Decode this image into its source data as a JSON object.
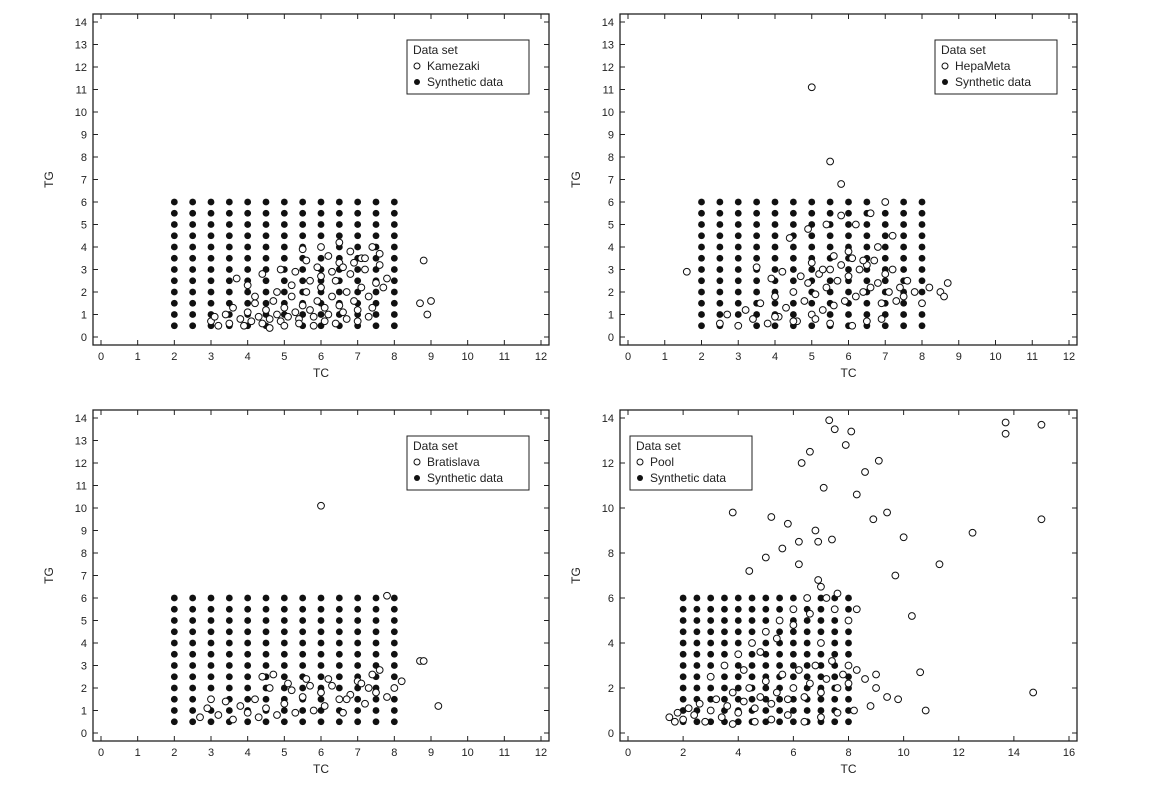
{
  "figure": {
    "panel_count": 4,
    "colors": {
      "axis": "#222222",
      "hollow_marker": "#ffffff",
      "filled_marker": "#111111"
    }
  },
  "chart_data": [
    {
      "type": "scatter",
      "xlabel": "TC",
      "ylabel": "TG",
      "xlim": [
        0,
        12
      ],
      "ylim": [
        0,
        14
      ],
      "xticks": [
        0,
        1,
        2,
        3,
        4,
        5,
        6,
        7,
        8,
        9,
        10,
        11,
        12
      ],
      "yticks": [
        0,
        1,
        2,
        3,
        4,
        5,
        6,
        7,
        8,
        9,
        10,
        11,
        12,
        13,
        14
      ],
      "legend_title": "Data set",
      "legend_position": "top-right",
      "series": [
        {
          "name": "Kamezaki",
          "marker": "hollow-circle",
          "x": [
            3.0,
            3.1,
            3.2,
            3.4,
            3.5,
            3.6,
            3.8,
            3.9,
            4.0,
            4.1,
            4.2,
            4.3,
            4.4,
            4.5,
            4.6,
            4.7,
            4.8,
            4.9,
            5.0,
            5.1,
            5.2,
            5.3,
            5.4,
            5.5,
            5.6,
            5.7,
            5.8,
            5.9,
            6.0,
            6.1,
            6.2,
            6.3,
            6.4,
            6.5,
            6.6,
            6.7,
            6.8,
            6.9,
            7.0,
            7.1,
            7.2,
            7.3,
            7.4,
            7.5,
            7.6,
            7.8,
            3.7,
            4.0,
            4.4,
            4.9,
            5.3,
            5.6,
            5.9,
            6.2,
            6.5,
            6.8,
            7.1,
            7.4,
            7.7,
            4.6,
            5.0,
            5.4,
            5.8,
            6.1,
            6.4,
            6.7,
            7.0,
            7.3,
            4.2,
            4.8,
            5.2,
            5.7,
            6.0,
            6.3,
            6.6,
            6.9,
            7.2,
            7.6,
            5.5,
            6.0,
            6.5,
            8.7,
            8.8,
            8.9,
            9.0
          ],
          "y": [
            0.7,
            0.9,
            0.5,
            1.0,
            0.6,
            1.3,
            0.8,
            0.5,
            1.1,
            0.7,
            1.5,
            0.9,
            0.6,
            1.2,
            0.8,
            1.6,
            1.0,
            0.7,
            1.3,
            0.9,
            1.8,
            1.1,
            0.8,
            1.4,
            2.0,
            1.2,
            0.9,
            1.6,
            2.2,
            1.3,
            1.0,
            1.8,
            2.5,
            1.4,
            1.1,
            2.0,
            2.8,
            1.6,
            1.2,
            2.2,
            3.0,
            1.8,
            1.3,
            2.4,
            3.2,
            2.6,
            2.6,
            2.3,
            2.8,
            3.0,
            2.9,
            3.4,
            3.1,
            3.6,
            3.3,
            3.8,
            3.5,
            4.0,
            2.2,
            0.4,
            0.5,
            0.6,
            0.5,
            0.7,
            0.6,
            0.8,
            0.7,
            0.9,
            1.8,
            2.0,
            2.3,
            2.5,
            2.7,
            2.9,
            3.1,
            3.3,
            3.5,
            3.7,
            3.9,
            4.0,
            4.2,
            1.5,
            3.4,
            1.0,
            1.6
          ]
        },
        {
          "name": "Synthetic data",
          "marker": "filled-circle",
          "x_grid": [
            2.0,
            8.0,
            0.5
          ],
          "y_grid": [
            0.5,
            6.0,
            0.5
          ]
        }
      ]
    },
    {
      "type": "scatter",
      "xlabel": "TC",
      "ylabel": "TG",
      "xlim": [
        0,
        12
      ],
      "ylim": [
        0,
        14
      ],
      "xticks": [
        0,
        1,
        2,
        3,
        4,
        5,
        6,
        7,
        8,
        9,
        10,
        11,
        12
      ],
      "yticks": [
        0,
        1,
        2,
        3,
        4,
        5,
        6,
        7,
        8,
        9,
        10,
        11,
        12,
        13,
        14
      ],
      "legend_title": "Data set",
      "legend_position": "top-right",
      "series": [
        {
          "name": "HepaMeta",
          "marker": "hollow-circle",
          "x": [
            1.6,
            2.5,
            2.7,
            3.0,
            3.2,
            3.4,
            3.6,
            3.8,
            4.0,
            4.1,
            4.3,
            4.5,
            4.6,
            4.8,
            4.9,
            5.0,
            5.1,
            5.2,
            5.3,
            5.4,
            5.5,
            5.6,
            5.7,
            5.8,
            5.9,
            6.0,
            6.1,
            6.2,
            6.3,
            6.4,
            6.5,
            6.6,
            6.7,
            6.8,
            6.9,
            7.0,
            7.1,
            7.2,
            7.3,
            7.4,
            7.5,
            7.6,
            7.8,
            8.0,
            8.2,
            3.5,
            3.9,
            4.2,
            4.7,
            5.0,
            5.3,
            5.6,
            6.0,
            6.4,
            6.8,
            7.2,
            4.4,
            4.9,
            5.4,
            5.8,
            6.2,
            6.6,
            7.0,
            4.0,
            4.5,
            5.1,
            5.5,
            6.1,
            6.5,
            6.9,
            5.0,
            5.5,
            5.8,
            8.5,
            8.6,
            8.7
          ],
          "y": [
            2.9,
            0.6,
            1.0,
            0.5,
            1.2,
            0.8,
            1.5,
            0.6,
            1.8,
            0.9,
            1.3,
            2.0,
            0.7,
            1.6,
            2.4,
            1.0,
            1.9,
            2.8,
            1.2,
            2.2,
            3.0,
            1.4,
            2.5,
            3.2,
            1.6,
            2.7,
            3.5,
            1.8,
            3.0,
            2.0,
            3.2,
            2.2,
            3.4,
            2.4,
            1.5,
            2.8,
            2.0,
            3.0,
            1.6,
            2.2,
            1.8,
            2.5,
            2.0,
            1.5,
            2.2,
            3.1,
            2.6,
            2.9,
            2.7,
            3.3,
            3.0,
            3.6,
            3.8,
            3.4,
            4.0,
            4.5,
            4.4,
            4.8,
            5.0,
            5.4,
            5.0,
            5.5,
            6.0,
            0.9,
            0.7,
            0.8,
            0.6,
            0.5,
            0.7,
            0.8,
            11.1,
            7.8,
            6.8,
            2.0,
            1.8,
            2.4
          ]
        },
        {
          "name": "Synthetic data",
          "marker": "filled-circle",
          "x_grid": [
            2.0,
            8.0,
            0.5
          ],
          "y_grid": [
            0.5,
            6.0,
            0.5
          ]
        }
      ]
    },
    {
      "type": "scatter",
      "xlabel": "TC",
      "ylabel": "TG",
      "xlim": [
        0,
        12
      ],
      "ylim": [
        0,
        14
      ],
      "xticks": [
        0,
        1,
        2,
        3,
        4,
        5,
        6,
        7,
        8,
        9,
        10,
        11,
        12
      ],
      "yticks": [
        0,
        1,
        2,
        3,
        4,
        5,
        6,
        7,
        8,
        9,
        10,
        11,
        12,
        13,
        14
      ],
      "legend_title": "Data set",
      "legend_position": "top-right",
      "series": [
        {
          "name": "Bratislava",
          "marker": "hollow-circle",
          "x": [
            2.7,
            2.9,
            3.0,
            3.2,
            3.4,
            3.6,
            3.8,
            4.0,
            4.2,
            4.3,
            4.5,
            4.6,
            4.8,
            5.0,
            5.1,
            5.3,
            5.5,
            5.6,
            5.8,
            6.0,
            6.1,
            6.3,
            6.5,
            6.6,
            6.8,
            7.0,
            7.2,
            7.4,
            7.5,
            7.6,
            7.8,
            8.0,
            8.2,
            4.4,
            4.7,
            5.2,
            5.7,
            6.2,
            6.7,
            7.1,
            7.3,
            6.0,
            7.8,
            8.7,
            8.8,
            9.2
          ],
          "y": [
            0.7,
            1.1,
            1.5,
            0.8,
            1.4,
            0.6,
            1.2,
            0.9,
            1.5,
            0.7,
            1.1,
            2.0,
            0.8,
            1.3,
            2.2,
            0.9,
            1.6,
            2.4,
            1.0,
            1.8,
            1.2,
            2.1,
            1.5,
            0.9,
            1.7,
            2.3,
            1.3,
            2.6,
            1.8,
            2.8,
            1.6,
            2.0,
            2.3,
            2.5,
            2.6,
            1.9,
            2.1,
            2.4,
            1.5,
            2.2,
            2.0,
            10.1,
            6.1,
            3.2,
            3.2,
            1.2
          ]
        },
        {
          "name": "Synthetic data",
          "marker": "filled-circle",
          "x_grid": [
            2.0,
            8.0,
            0.5
          ],
          "y_grid": [
            0.5,
            6.0,
            0.5
          ]
        }
      ]
    },
    {
      "type": "scatter",
      "xlabel": "TC",
      "ylabel": "TG",
      "xlim": [
        0,
        16
      ],
      "ylim": [
        0,
        14
      ],
      "xticks": [
        0,
        2,
        4,
        6,
        8,
        10,
        12,
        14,
        16
      ],
      "yticks": [
        0,
        2,
        4,
        6,
        8,
        10,
        12,
        14
      ],
      "legend_title": "Data set",
      "legend_position": "top-left",
      "series": [
        {
          "name": "Pool",
          "marker": "hollow-circle",
          "x": [
            1.5,
            1.7,
            1.8,
            2.0,
            2.2,
            2.4,
            2.6,
            2.8,
            3.0,
            3.2,
            3.4,
            3.6,
            3.8,
            4.0,
            4.2,
            4.4,
            4.6,
            4.8,
            5.0,
            5.2,
            5.4,
            5.6,
            5.8,
            6.0,
            6.2,
            6.4,
            6.6,
            6.8,
            7.0,
            7.2,
            7.4,
            7.6,
            7.8,
            8.0,
            8.3,
            8.6,
            9.0,
            9.4,
            9.8,
            3.0,
            3.5,
            4.0,
            4.5,
            5.0,
            5.5,
            6.0,
            6.5,
            7.0,
            7.5,
            8.0,
            4.2,
            4.8,
            5.4,
            6.0,
            6.6,
            7.2,
            3.8,
            4.6,
            5.2,
            5.8,
            6.4,
            7.0,
            7.6,
            8.2,
            8.8,
            4.4,
            5.0,
            5.6,
            6.2,
            6.8,
            7.4,
            3.8,
            5.2,
            5.8,
            6.3,
            6.6,
            6.9,
            7.1,
            7.3,
            7.5,
            7.9,
            8.1,
            8.3,
            8.6,
            8.9,
            9.1,
            9.4,
            9.7,
            10.0,
            10.3,
            10.6,
            10.8,
            11.3,
            12.5,
            13.7,
            14.7,
            15.0,
            13.7,
            15.0,
            7.0,
            8.0,
            9.0,
            6.2,
            6.9,
            7.6,
            8.3
          ],
          "y": [
            0.7,
            0.5,
            0.9,
            0.6,
            1.1,
            0.8,
            1.3,
            0.5,
            1.0,
            1.5,
            0.7,
            1.2,
            1.8,
            0.9,
            1.4,
            2.0,
            1.1,
            1.6,
            2.3,
            1.3,
            1.8,
            2.6,
            1.5,
            2.0,
            2.8,
            1.6,
            2.2,
            3.0,
            1.8,
            2.4,
            3.2,
            2.0,
            2.6,
            2.2,
            2.8,
            2.4,
            2.0,
            1.6,
            1.5,
            2.5,
            3.0,
            3.5,
            4.0,
            4.5,
            5.0,
            5.5,
            6.0,
            6.5,
            5.5,
            5.0,
            2.8,
            3.6,
            4.2,
            4.8,
            5.3,
            6.0,
            0.4,
            0.5,
            0.6,
            0.8,
            0.5,
            0.7,
            0.9,
            1.0,
            1.2,
            7.2,
            7.8,
            8.2,
            8.5,
            9.0,
            8.6,
            9.8,
            9.6,
            9.3,
            12.0,
            12.5,
            8.5,
            10.9,
            13.9,
            13.5,
            12.8,
            13.4,
            10.6,
            11.6,
            9.5,
            12.1,
            9.8,
            7.0,
            8.7,
            5.2,
            2.7,
            1.0,
            7.5,
            8.9,
            13.8,
            1.8,
            9.5,
            13.3,
            13.7,
            4.0,
            3.0,
            2.6,
            7.5,
            6.8,
            6.2,
            5.5
          ]
        },
        {
          "name": "Synthetic data",
          "marker": "filled-circle",
          "x_grid": [
            2.0,
            8.0,
            0.5
          ],
          "y_grid": [
            0.5,
            6.0,
            0.5
          ]
        }
      ]
    }
  ]
}
